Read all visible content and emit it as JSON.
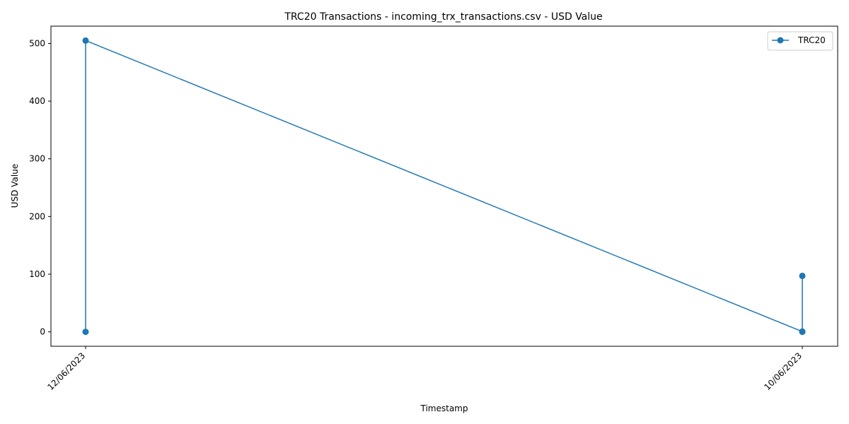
{
  "chart_data": {
    "type": "line",
    "title": "TRC20 Transactions - incoming_trx_transactions.csv - USD Value",
    "xlabel": "Timestamp",
    "ylabel": "USD Value",
    "categories": [
      "12/06/2023",
      "10/06/2023"
    ],
    "ylim": [
      -25,
      530
    ],
    "yticks": [
      0,
      100,
      200,
      300,
      400,
      500
    ],
    "grid": false,
    "legend_position": "top-right",
    "series": [
      {
        "name": "TRC20",
        "color": "#1f77b4",
        "points": [
          {
            "x": "12/06/2023",
            "y": 0
          },
          {
            "x": "12/06/2023",
            "y": 505
          },
          {
            "x": "10/06/2023",
            "y": 0.5
          },
          {
            "x": "10/06/2023",
            "y": 97
          },
          {
            "x": "10/06/2023",
            "y": 0
          }
        ]
      }
    ]
  }
}
